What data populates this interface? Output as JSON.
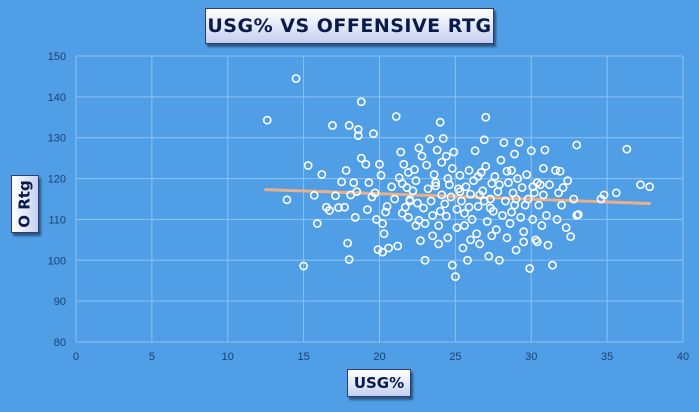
{
  "chart_data": {
    "type": "scatter",
    "title": "USG% VS OFFENSIVE RTG",
    "xlabel": "USG%",
    "ylabel": "O Rtg",
    "xlim": [
      0,
      40
    ],
    "ylim": [
      80,
      150
    ],
    "xticks": [
      0,
      5,
      10,
      15,
      20,
      25,
      30,
      35,
      40
    ],
    "yticks": [
      80,
      90,
      100,
      110,
      120,
      130,
      140,
      150
    ],
    "grid": true,
    "legend": "none",
    "trendline": {
      "type": "linear",
      "x": [
        12.5,
        37.8
      ],
      "y": [
        117.3,
        113.9
      ],
      "color": "#e8b08a"
    },
    "marker_color": "#ffffff",
    "series": [
      {
        "points": [
          [
            12.6,
            134.3
          ],
          [
            13.9,
            114.8
          ],
          [
            14.5,
            144.5
          ],
          [
            15.0,
            98.6
          ],
          [
            15.3,
            123.2
          ],
          [
            15.7,
            115.9
          ],
          [
            15.9,
            109.0
          ],
          [
            16.2,
            121.0
          ],
          [
            16.5,
            113.0
          ],
          [
            16.7,
            112.2
          ],
          [
            16.9,
            133.0
          ],
          [
            17.1,
            115.8
          ],
          [
            17.3,
            112.9
          ],
          [
            17.5,
            119.2
          ],
          [
            17.7,
            113.0
          ],
          [
            17.8,
            122.0
          ],
          [
            17.9,
            104.2
          ],
          [
            18.0,
            133.0
          ],
          [
            18.0,
            100.2
          ],
          [
            18.1,
            116.0
          ],
          [
            18.3,
            119.0
          ],
          [
            18.5,
            116.8
          ],
          [
            18.6,
            132.0
          ],
          [
            18.6,
            130.5
          ],
          [
            18.8,
            138.8
          ],
          [
            18.8,
            125.0
          ],
          [
            19.1,
            123.5
          ],
          [
            19.2,
            112.4
          ],
          [
            19.3,
            119.0
          ],
          [
            19.6,
            131.0
          ],
          [
            19.7,
            116.5
          ],
          [
            19.8,
            110.0
          ],
          [
            19.9,
            102.6
          ],
          [
            20.0,
            123.5
          ],
          [
            20.1,
            120.8
          ],
          [
            20.2,
            109.0
          ],
          [
            20.3,
            106.5
          ],
          [
            20.2,
            102.0
          ],
          [
            20.4,
            111.8
          ],
          [
            20.6,
            103.0
          ],
          [
            20.8,
            118.0
          ],
          [
            21.0,
            115.0
          ],
          [
            21.1,
            135.2
          ],
          [
            21.2,
            103.5
          ],
          [
            21.3,
            120.2
          ],
          [
            21.4,
            126.5
          ],
          [
            21.5,
            118.8
          ],
          [
            21.6,
            123.5
          ],
          [
            21.7,
            113.0
          ],
          [
            21.8,
            117.8
          ],
          [
            21.9,
            110.5
          ],
          [
            22.0,
            114.5
          ],
          [
            22.2,
            117.0
          ],
          [
            22.3,
            122.2
          ],
          [
            22.4,
            119.5
          ],
          [
            22.5,
            114.0
          ],
          [
            22.6,
            109.8
          ],
          [
            22.7,
            104.8
          ],
          [
            22.8,
            125.5
          ],
          [
            22.9,
            112.8
          ],
          [
            23.0,
            100.0
          ],
          [
            23.1,
            123.3
          ],
          [
            23.2,
            117.5
          ],
          [
            23.3,
            129.7
          ],
          [
            23.4,
            114.5
          ],
          [
            23.5,
            111.0
          ],
          [
            23.5,
            106.0
          ],
          [
            23.6,
            121.0
          ],
          [
            23.7,
            118.2
          ],
          [
            23.8,
            127.0
          ],
          [
            23.9,
            108.5
          ],
          [
            24.0,
            133.8
          ],
          [
            24.1,
            124.0
          ],
          [
            24.1,
            116.0
          ],
          [
            24.2,
            129.8
          ],
          [
            24.3,
            113.8
          ],
          [
            24.4,
            110.8
          ],
          [
            24.5,
            105.5
          ],
          [
            24.5,
            120.0
          ],
          [
            24.6,
            118.5
          ],
          [
            24.7,
            115.5
          ],
          [
            24.8,
            122.5
          ],
          [
            24.9,
            126.5
          ],
          [
            25.0,
            96.0
          ],
          [
            25.1,
            112.5
          ],
          [
            25.1,
            108.0
          ],
          [
            25.2,
            117.5
          ],
          [
            25.3,
            120.8
          ],
          [
            25.4,
            114.5
          ],
          [
            25.5,
            103.0
          ],
          [
            25.6,
            111.5
          ],
          [
            25.7,
            118.0
          ],
          [
            25.8,
            100.0
          ],
          [
            25.9,
            122.0
          ],
          [
            26.0,
            116.2
          ],
          [
            26.1,
            110.0
          ],
          [
            26.2,
            119.5
          ],
          [
            26.3,
            126.8
          ],
          [
            26.4,
            106.5
          ],
          [
            26.5,
            113.2
          ],
          [
            26.6,
            104.0
          ],
          [
            26.7,
            121.5
          ],
          [
            26.8,
            117.0
          ],
          [
            26.9,
            129.5
          ],
          [
            27.0,
            135.0
          ],
          [
            27.0,
            123.0
          ],
          [
            27.1,
            109.5
          ],
          [
            27.2,
            101.0
          ],
          [
            27.3,
            115.0
          ],
          [
            27.4,
            118.8
          ],
          [
            27.5,
            112.0
          ],
          [
            27.6,
            120.5
          ],
          [
            27.7,
            107.5
          ],
          [
            27.8,
            116.8
          ],
          [
            27.9,
            100.0
          ],
          [
            28.0,
            124.5
          ],
          [
            28.1,
            111.0
          ],
          [
            28.2,
            128.8
          ],
          [
            28.3,
            114.5
          ],
          [
            28.4,
            105.5
          ],
          [
            28.5,
            119.0
          ],
          [
            28.6,
            109.0
          ],
          [
            28.7,
            122.0
          ],
          [
            28.8,
            116.5
          ],
          [
            28.9,
            113.5
          ],
          [
            29.0,
            102.5
          ],
          [
            29.1,
            120.0
          ],
          [
            29.2,
            128.9
          ],
          [
            29.3,
            110.5
          ],
          [
            29.4,
            117.8
          ],
          [
            29.5,
            107.0
          ],
          [
            29.6,
            113.5
          ],
          [
            29.7,
            121.0
          ],
          [
            29.8,
            115.0
          ],
          [
            29.9,
            98.0
          ],
          [
            30.0,
            126.8
          ],
          [
            30.1,
            110.0
          ],
          [
            30.2,
            116.5
          ],
          [
            30.3,
            105.0
          ],
          [
            30.4,
            119.0
          ],
          [
            30.5,
            113.5
          ],
          [
            30.6,
            118.5
          ],
          [
            30.7,
            108.5
          ],
          [
            30.8,
            116.0
          ],
          [
            30.9,
            127.0
          ],
          [
            31.0,
            111.0
          ],
          [
            31.1,
            103.7
          ],
          [
            31.2,
            118.5
          ],
          [
            31.4,
            98.8
          ],
          [
            31.6,
            122.0
          ],
          [
            31.7,
            110.0
          ],
          [
            31.8,
            116.5
          ],
          [
            32.0,
            113.5
          ],
          [
            32.3,
            108.0
          ],
          [
            32.4,
            119.5
          ],
          [
            32.6,
            105.8
          ],
          [
            32.8,
            115.0
          ],
          [
            33.0,
            111.0
          ],
          [
            33.0,
            128.2
          ],
          [
            34.6,
            115.0
          ],
          [
            34.8,
            116.0
          ],
          [
            35.6,
            116.5
          ],
          [
            36.3,
            127.2
          ],
          [
            37.2,
            118.5
          ],
          [
            37.8,
            118.0
          ],
          [
            33.1,
            111.2
          ],
          [
            26.0,
            105.0
          ],
          [
            24.8,
            98.8
          ],
          [
            22.0,
            114.8
          ],
          [
            20.5,
            113.2
          ],
          [
            21.9,
            121.5
          ],
          [
            23.9,
            104.0
          ],
          [
            27.4,
            106.0
          ],
          [
            28.7,
            111.8
          ],
          [
            30.4,
            104.5
          ],
          [
            31.9,
            121.8
          ],
          [
            22.6,
            127.5
          ],
          [
            24.4,
            125.5
          ],
          [
            25.6,
            108.5
          ],
          [
            26.9,
            114.5
          ],
          [
            28.9,
            126.0
          ],
          [
            29.5,
            104.5
          ],
          [
            19.5,
            115.5
          ],
          [
            18.4,
            110.5
          ],
          [
            23.0,
            109.0
          ],
          [
            25.3,
            116.8
          ],
          [
            26.5,
            120.5
          ],
          [
            27.9,
            118.5
          ],
          [
            29.0,
            115.0
          ],
          [
            30.8,
            122.5
          ],
          [
            32.1,
            117.8
          ],
          [
            24.0,
            112.0
          ],
          [
            22.4,
            108.5
          ],
          [
            21.5,
            111.5
          ],
          [
            25.9,
            113.0
          ],
          [
            27.3,
            112.8
          ],
          [
            28.4,
            121.8
          ],
          [
            30.1,
            118.0
          ],
          [
            23.7,
            119.0
          ],
          [
            26.6,
            116.0
          ]
        ]
      }
    ]
  }
}
